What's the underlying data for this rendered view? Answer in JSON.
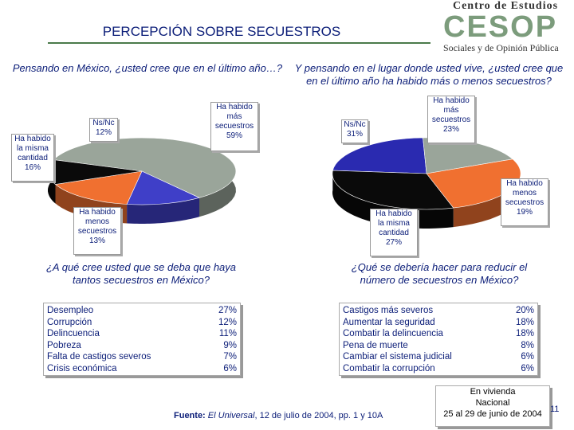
{
  "header": {
    "title": "PERCEPCIÓN SOBRE SECUESTROS"
  },
  "logo": {
    "line1": "Centro de Estudios",
    "line2": "CESOP",
    "line3": "Sociales y de Opinión Pública"
  },
  "chart_data": [
    {
      "type": "pie",
      "question": "Pensando en México, ¿usted cree que en el último año…?",
      "slices": [
        {
          "name": "Ha habido más secuestros",
          "value": 59,
          "color": "#9aa59a"
        },
        {
          "name": "Ha habido menos secuestros",
          "value": 13,
          "color": "#3f3fc8"
        },
        {
          "name": "Ha habido la misma cantidad",
          "value": 16,
          "color": "#f07030"
        },
        {
          "name": "Ns/Nc",
          "value": 12,
          "color": "#0a0a0a"
        }
      ],
      "labels": {
        "mas": {
          "line1": "Ha habido",
          "line2": "más",
          "line3": "secuestros",
          "pct": "59%"
        },
        "menos": {
          "line1": "Ha habido",
          "line2": "menos",
          "line3": "secuestros",
          "pct": "13%"
        },
        "misma": {
          "line1": "Ha habido",
          "line2": "la misma",
          "line3": "cantidad",
          "pct": "16%"
        },
        "nsnc": {
          "line1": "Ns/Nc",
          "pct": "12%"
        }
      }
    },
    {
      "type": "pie",
      "question": "Y pensando en el lugar donde usted vive, ¿usted cree que en el último año ha habido más o menos secuestros?",
      "slices": [
        {
          "name": "Ha habido más secuestros",
          "value": 23,
          "color": "#2a2ab0"
        },
        {
          "name": "Ha habido menos secuestros",
          "value": 19,
          "color": "#9aa59a"
        },
        {
          "name": "Ha habido la misma cantidad",
          "value": 27,
          "color": "#f07030"
        },
        {
          "name": "Ns/Nc",
          "value": 31,
          "color": "#0a0a0a"
        }
      ],
      "labels": {
        "mas": {
          "line1": "Ha habido",
          "line2": "más",
          "line3": "secuestros",
          "pct": "23%"
        },
        "menos": {
          "line1": "Ha habido",
          "line2": "menos",
          "line3": "secuestros",
          "pct": "19%"
        },
        "misma": {
          "line1": "Ha habido",
          "line2": "la misma",
          "line3": "cantidad",
          "pct": "27%"
        },
        "nsnc": {
          "line1": "Ns/Nc",
          "pct": "31%"
        }
      }
    }
  ],
  "table_left": {
    "question": "¿A qué cree usted que se deba que haya tantos secuestros en México?",
    "rows": [
      {
        "label": "Desempleo",
        "value": "27%"
      },
      {
        "label": "Corrupción",
        "value": "12%"
      },
      {
        "label": "Delincuencia",
        "value": "11%"
      },
      {
        "label": "Pobreza",
        "value": "9%"
      },
      {
        "label": "Falta de castigos severos",
        "value": "7%"
      },
      {
        "label": "Crisis económica",
        "value": "6%"
      }
    ]
  },
  "table_right": {
    "question": "¿Qué se debería hacer para reducir el número de secuestros en México?",
    "rows": [
      {
        "label": "Castigos más severos",
        "value": "20%"
      },
      {
        "label": "Aumentar la seguridad",
        "value": "18%"
      },
      {
        "label": "Combatir la delincuencia",
        "value": "18%"
      },
      {
        "label": "Pena de muerte",
        "value": "8%"
      },
      {
        "label": "Cambiar el sistema judicial",
        "value": "6%"
      },
      {
        "label": "Combatir la corrupción",
        "value": "6%"
      }
    ]
  },
  "footer": {
    "source_label": "Fuente:",
    "source_pub": "El Universal",
    "source_rest": ", 12 de julio de 2004, pp. 1 y 10A",
    "stamp_line1": "En vivienda",
    "stamp_line2": "Nacional",
    "stamp_line3": "25 al 29 de junio de 2004",
    "page_number": "11"
  }
}
